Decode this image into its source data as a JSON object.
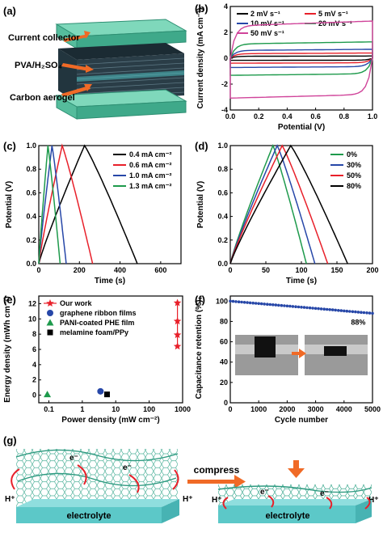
{
  "colors": {
    "black": "#000000",
    "red": "#e8202a",
    "blue": "#2747a8",
    "green": "#1e9a4c",
    "magenta": "#d0449a",
    "teal": "#4fc0c0",
    "orange": "#f06a26",
    "slab_top": "#6dcfb0",
    "slab_side": "#3fa98a"
  },
  "panels": {
    "a": {
      "label": "(a)",
      "layers": [
        "Current collector",
        "PVA/H₂SO₄",
        "Carbon aerogel"
      ]
    },
    "g": {
      "label": "(g)",
      "left_electrolyte": "electrolyte",
      "right_electrolyte": "electrolyte",
      "compress_label": "compress",
      "ion_label": "H⁺",
      "electron_label": "e⁻"
    }
  },
  "chart_data": [
    {
      "panel": "(b)",
      "type": "line",
      "subtype": "cyclic voltammetry",
      "xlabel": "Potential (V)",
      "ylabel": "Current density (mA cm⁻²)",
      "xlim": [
        0.0,
        1.0
      ],
      "ylim": [
        -4,
        4
      ],
      "xticks": [
        "0.0",
        "0.2",
        "0.4",
        "0.6",
        "0.8",
        "1.0"
      ],
      "yticks": [
        "-4",
        "-2",
        "0",
        "2",
        "4"
      ],
      "legend_position": "top",
      "series": [
        {
          "name": "2 mV s⁻¹",
          "color": "#000000",
          "upper": 0.15,
          "lower": -0.15
        },
        {
          "name": "5 mV s⁻¹",
          "color": "#e8202a",
          "upper": 0.35,
          "lower": -0.35
        },
        {
          "name": "10 mV s⁻¹",
          "color": "#2747a8",
          "upper": 0.6,
          "lower": -0.65
        },
        {
          "name": "20 mV s⁻¹",
          "color": "#1e9a4c",
          "upper": 1.1,
          "lower": -1.2
        },
        {
          "name": "50 mV s⁻¹",
          "color": "#d0449a",
          "upper": 2.5,
          "lower": -2.8
        }
      ]
    },
    {
      "panel": "(c)",
      "type": "line",
      "subtype": "galvanostatic charge-discharge",
      "xlabel": "Time (s)",
      "ylabel": "Potential (V)",
      "xlim": [
        0,
        700
      ],
      "ylim": [
        0.0,
        1.0
      ],
      "xticks": [
        "0",
        "200",
        "400",
        "600"
      ],
      "yticks": [
        "0.0",
        "0.2",
        "0.4",
        "0.6",
        "0.8",
        "1.0"
      ],
      "legend_position": "right",
      "series": [
        {
          "name": "0.4 mA cm⁻²",
          "color": "#000000",
          "t_charge": 225,
          "t_end": 485
        },
        {
          "name": "0.6 mA cm⁻²",
          "color": "#e8202a",
          "t_charge": 115,
          "t_end": 265
        },
        {
          "name": "1.0 mA cm⁻²",
          "color": "#2747a8",
          "t_charge": 65,
          "t_end": 135
        },
        {
          "name": "1.3 mA cm⁻²",
          "color": "#1e9a4c",
          "t_charge": 45,
          "t_end": 105
        }
      ]
    },
    {
      "panel": "(d)",
      "type": "line",
      "subtype": "galvanostatic charge-discharge under compression",
      "xlabel": "Time (s)",
      "ylabel": "Potential (V)",
      "xlim": [
        0,
        200
      ],
      "ylim": [
        0.0,
        1.0
      ],
      "xticks": [
        "0",
        "50",
        "100",
        "150",
        "200"
      ],
      "yticks": [
        "0.0",
        "0.2",
        "0.4",
        "0.6",
        "0.8",
        "1.0"
      ],
      "legend_position": "right",
      "series": [
        {
          "name": "0%",
          "color": "#1e9a4c",
          "t_charge": 60,
          "t_end": 107
        },
        {
          "name": "30%",
          "color": "#2747a8",
          "t_charge": 66,
          "t_end": 119
        },
        {
          "name": "50%",
          "color": "#e8202a",
          "t_charge": 73,
          "t_end": 137
        },
        {
          "name": "80%",
          "color": "#000000",
          "t_charge": 85,
          "t_end": 165
        }
      ]
    },
    {
      "panel": "(e)",
      "type": "scatter",
      "subtype": "Ragone plot",
      "xlabel": "Power density (mW cm⁻²)",
      "ylabel": "Energy density (mWh cm⁻²)",
      "xscale": "log",
      "xlim": [
        0.05,
        1000
      ],
      "ylim": [
        -1,
        13
      ],
      "xticks": [
        "0.1",
        "1",
        "10",
        "100",
        "1000"
      ],
      "yticks": [
        "0",
        "2",
        "4",
        "6",
        "8",
        "10",
        "12"
      ],
      "legend_position": "top-left",
      "series": [
        {
          "name": "Our work",
          "color": "#e8202a",
          "marker": "star",
          "line": true,
          "points": [
            [
              700,
              12.1
            ],
            [
              700,
              9.7
            ],
            [
              700,
              7.9
            ],
            [
              700,
              6.4
            ]
          ]
        },
        {
          "name": "graphene ribbon films",
          "color": "#2747a8",
          "marker": "circle",
          "points": [
            [
              3.5,
              0.5
            ]
          ]
        },
        {
          "name": "PANI-coated PHE film",
          "color": "#1e9a4c",
          "marker": "triangle",
          "points": [
            [
              0.09,
              0.1
            ]
          ]
        },
        {
          "name": "melamine foam/PPy",
          "color": "#000000",
          "marker": "square",
          "points": [
            [
              5.5,
              0.1
            ]
          ]
        }
      ]
    },
    {
      "panel": "(f)",
      "type": "scatter",
      "subtype": "cycling stability",
      "xlabel": "Cycle number",
      "ylabel": "Capacitance retention (%)",
      "xlim": [
        0,
        5000
      ],
      "ylim": [
        0,
        105
      ],
      "xticks": [
        "0",
        "1000",
        "2000",
        "3000",
        "4000",
        "5000"
      ],
      "yticks": [
        "0",
        "20",
        "40",
        "60",
        "80",
        "100"
      ],
      "annotation": "88%",
      "series": [
        {
          "name": "",
          "color": "#2747a8",
          "start": 100,
          "end": 88,
          "step": 100
        }
      ]
    }
  ]
}
